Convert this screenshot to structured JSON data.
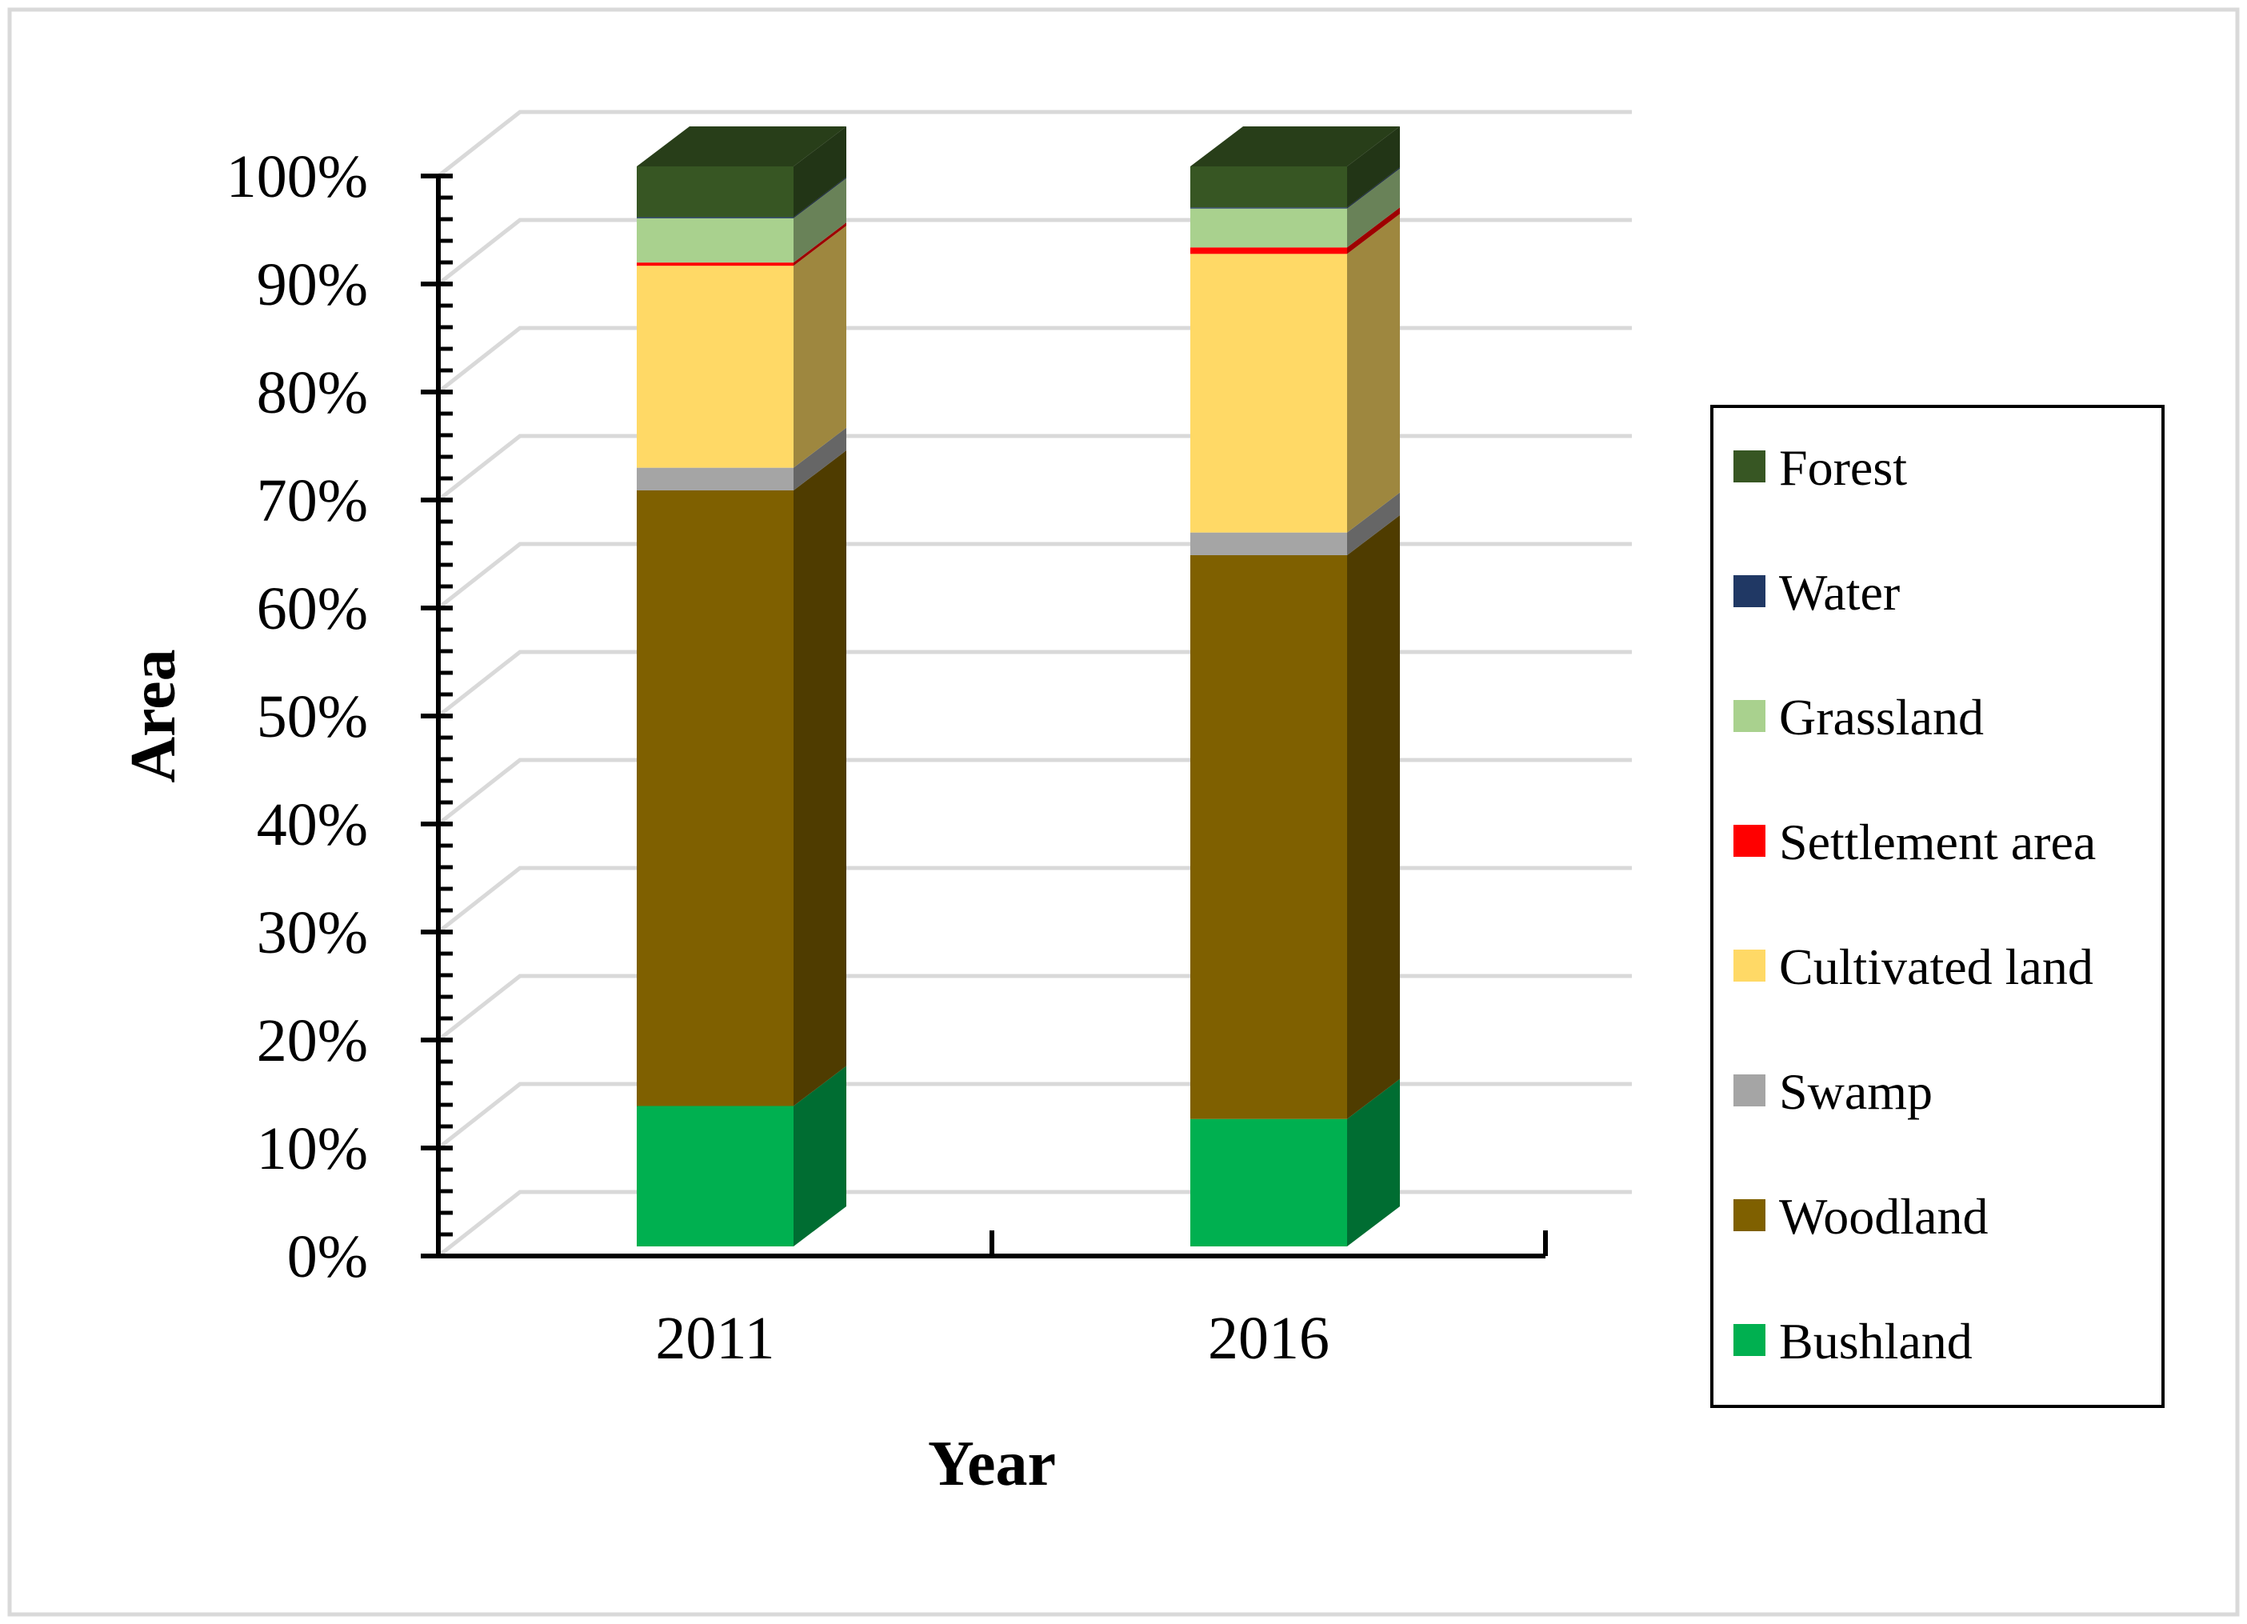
{
  "chart_data": {
    "type": "bar",
    "stacked": true,
    "style": "3d",
    "title": "",
    "xlabel": "Year",
    "ylabel": "Area",
    "ylim": [
      0,
      100
    ],
    "y_ticks": [
      "0%",
      "10%",
      "20%",
      "30%",
      "40%",
      "50%",
      "60%",
      "70%",
      "80%",
      "90%",
      "100%"
    ],
    "categories": [
      "2011",
      "2016"
    ],
    "series": [
      {
        "name": "Bushland",
        "color": "#00b050",
        "values": [
          13.0,
          11.8
        ]
      },
      {
        "name": "Woodland",
        "color": "#7f6000",
        "values": [
          57.0,
          52.2
        ]
      },
      {
        "name": "Swamp",
        "color": "#a5a5a5",
        "values": [
          2.1,
          2.1
        ]
      },
      {
        "name": "Cultivated land",
        "color": "#ffd966",
        "values": [
          18.7,
          25.8
        ]
      },
      {
        "name": "Settlement area",
        "color": "#ff0000",
        "values": [
          0.3,
          0.6
        ]
      },
      {
        "name": "Grassland",
        "color": "#a9d18e",
        "values": [
          4.1,
          3.6
        ]
      },
      {
        "name": "Water",
        "color": "#203864",
        "values": [
          0.1,
          0.1
        ]
      },
      {
        "name": "Forest",
        "color": "#375623",
        "values": [
          4.7,
          3.8
        ]
      }
    ],
    "legend": {
      "position": "right",
      "order": [
        "Forest",
        "Water",
        "Grassland",
        "Settlement area",
        "Cultivated land",
        "Swamp",
        "Woodland",
        "Bushland"
      ]
    },
    "grid": true
  }
}
